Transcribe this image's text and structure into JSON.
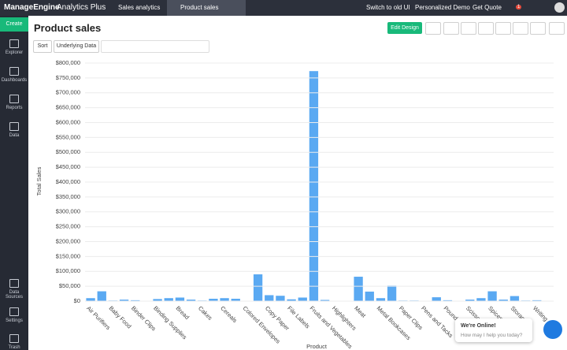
{
  "topbar": {
    "brand": "ManageEngine",
    "product": "Analytics Plus",
    "workspace": "Sales analytics",
    "tab": "Product sales",
    "links": [
      "Switch to old UI",
      "Personalized Demo",
      "Get Quote"
    ],
    "badge": "1"
  },
  "sidebar": {
    "create": "Create",
    "items": [
      "Explorer",
      "Dashboards",
      "Reports",
      "Data"
    ],
    "bottom": [
      "Data Sources",
      "Settings",
      "Trash"
    ]
  },
  "header": {
    "title": "Product sales",
    "edit": "Edit Design"
  },
  "toolbar": {
    "sort": "Sort",
    "underlying": "Underlying Data"
  },
  "chat": {
    "title": "We're Online!",
    "subtitle": "How may I help you today?"
  },
  "chart_data": {
    "type": "bar",
    "x_label": "Product",
    "y_label": "Total Sales",
    "color": "#5aa9f2",
    "grid": true,
    "categories": [
      "Air Purifiers",
      null,
      "Baby Food",
      null,
      "Binder Clips",
      null,
      "Binding Supplies",
      null,
      "Bread",
      null,
      "Cakes",
      null,
      "Cereals",
      null,
      "Colored Envelopes",
      null,
      "Copy Paper",
      null,
      "File Labels",
      null,
      "Fruits and Vegetables",
      null,
      "Highlighters",
      null,
      "Meat",
      null,
      "Metal Bookcases",
      null,
      "Paper Clips",
      null,
      "Pens and Tacks",
      null,
      "Pound Ri",
      null,
      "Scissors",
      null,
      "Spices",
      null,
      "Storage ...",
      null,
      "Writing ...",
      null
    ],
    "values": [
      10000,
      33000,
      2000,
      5000,
      3000,
      1000,
      7000,
      10000,
      12000,
      5000,
      2000,
      8000,
      10000,
      8000,
      1000,
      90000,
      20000,
      18000,
      6000,
      12000,
      773000,
      4000,
      1000,
      1000,
      82000,
      32000,
      10000,
      52000,
      2000,
      2000,
      1000,
      13000,
      3000,
      1000,
      5000,
      10000,
      33000,
      5000,
      17000,
      2000,
      3000,
      1000
    ],
    "ylim": [
      0,
      800000
    ],
    "yticks": [
      {
        "value": 0,
        "label": "$0"
      },
      {
        "value": 50000,
        "label": "$50,000"
      },
      {
        "value": 100000,
        "label": "$100,000"
      },
      {
        "value": 150000,
        "label": "$150,000"
      },
      {
        "value": 200000,
        "label": "$200,000"
      },
      {
        "value": 250000,
        "label": "$250,000"
      },
      {
        "value": 300000,
        "label": "$300,000"
      },
      {
        "value": 350000,
        "label": "$350,000"
      },
      {
        "value": 400000,
        "label": "$400,000"
      },
      {
        "value": 450000,
        "label": "$450,000"
      },
      {
        "value": 500000,
        "label": "$500,000"
      },
      {
        "value": 550000,
        "label": "$550,000"
      },
      {
        "value": 600000,
        "label": "$600,000"
      },
      {
        "value": 650000,
        "label": "$650,000"
      },
      {
        "value": 700000,
        "label": "$700,000"
      },
      {
        "value": 750000,
        "label": "$750,000"
      },
      {
        "value": 800000,
        "label": "$800,000"
      }
    ]
  }
}
